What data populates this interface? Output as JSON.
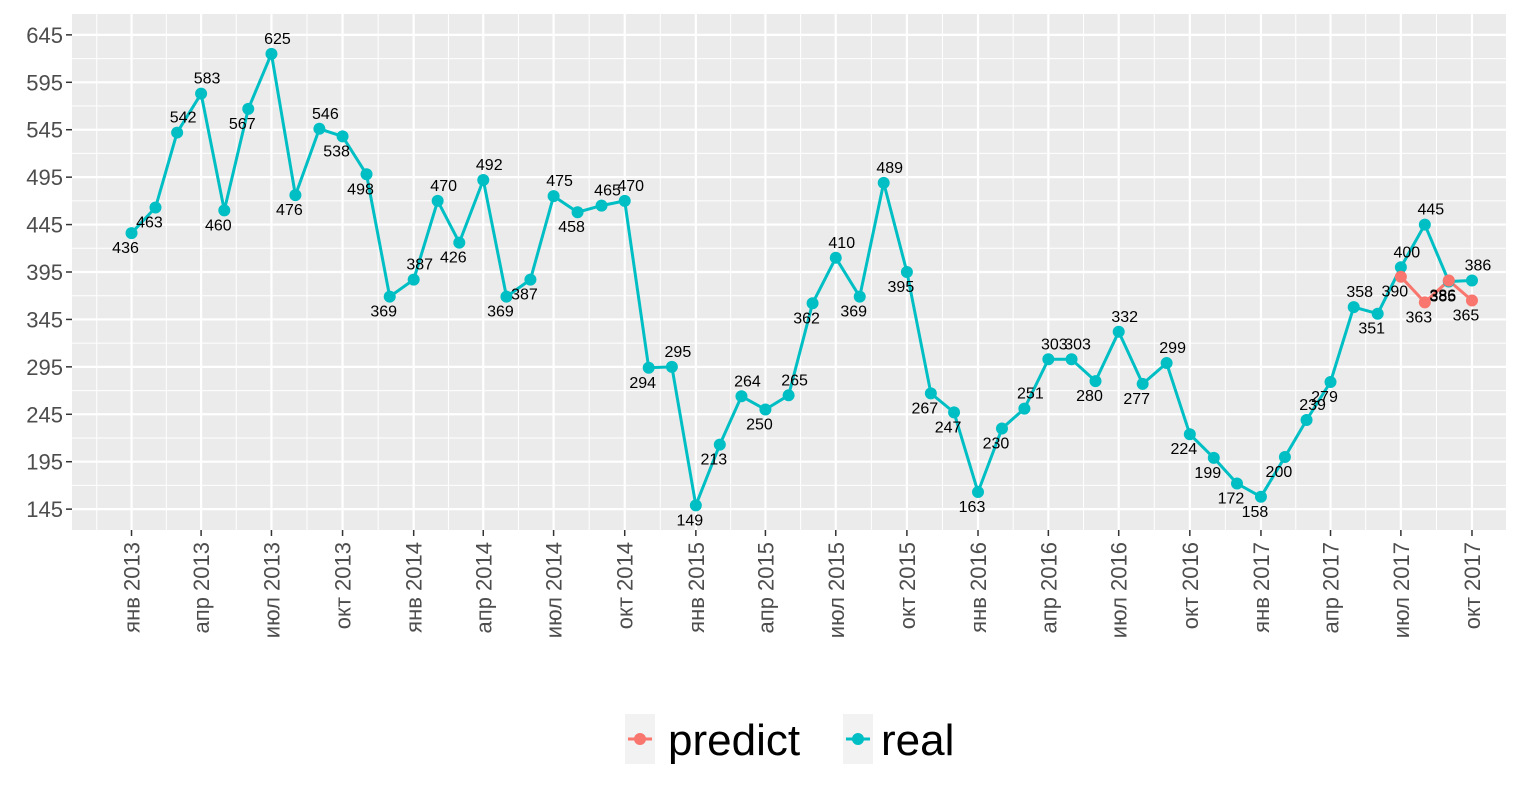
{
  "chart_data": {
    "type": "line",
    "title": "",
    "xlabel": "",
    "ylabel": "",
    "ylim": [
      123,
      667
    ],
    "yticks": [
      145,
      195,
      245,
      295,
      345,
      395,
      445,
      495,
      545,
      595,
      645
    ],
    "xlim": [
      "2012-10-16",
      "2017-11-14"
    ],
    "xticks": [
      {
        "date": "2013-01-01",
        "label": "янв 2013"
      },
      {
        "date": "2013-04-01",
        "label": "апр 2013"
      },
      {
        "date": "2013-07-01",
        "label": "июл 2013"
      },
      {
        "date": "2013-10-01",
        "label": "окт 2013"
      },
      {
        "date": "2014-01-01",
        "label": "янв 2014"
      },
      {
        "date": "2014-04-01",
        "label": "апр 2014"
      },
      {
        "date": "2014-07-01",
        "label": "июл 2014"
      },
      {
        "date": "2014-10-01",
        "label": "окт 2014"
      },
      {
        "date": "2015-01-01",
        "label": "янв 2015"
      },
      {
        "date": "2015-04-01",
        "label": "апр 2015"
      },
      {
        "date": "2015-07-01",
        "label": "июл 2015"
      },
      {
        "date": "2015-10-01",
        "label": "окт 2015"
      },
      {
        "date": "2016-01-01",
        "label": "янв 2016"
      },
      {
        "date": "2016-04-01",
        "label": "апр 2016"
      },
      {
        "date": "2016-07-01",
        "label": "июл 2016"
      },
      {
        "date": "2016-10-01",
        "label": "окт 2016"
      },
      {
        "date": "2017-01-01",
        "label": "янв 2017"
      },
      {
        "date": "2017-04-01",
        "label": "апр 2017"
      },
      {
        "date": "2017-07-01",
        "label": "июл 2017"
      },
      {
        "date": "2017-10-01",
        "label": "окт 2017"
      }
    ],
    "grid": true,
    "legend_position": "bottom",
    "series": [
      {
        "name": "real",
        "color": "#00BFC4",
        "points": [
          {
            "x": "2013-01-01",
            "y": 436
          },
          {
            "x": "2013-02-01",
            "y": 463
          },
          {
            "x": "2013-03-01",
            "y": 542
          },
          {
            "x": "2013-04-01",
            "y": 583
          },
          {
            "x": "2013-05-01",
            "y": 460
          },
          {
            "x": "2013-06-01",
            "y": 567
          },
          {
            "x": "2013-07-01",
            "y": 625
          },
          {
            "x": "2013-08-01",
            "y": 476
          },
          {
            "x": "2013-09-01",
            "y": 546
          },
          {
            "x": "2013-10-01",
            "y": 538
          },
          {
            "x": "2013-11-01",
            "y": 498
          },
          {
            "x": "2013-12-01",
            "y": 369
          },
          {
            "x": "2014-01-01",
            "y": 387
          },
          {
            "x": "2014-02-01",
            "y": 470
          },
          {
            "x": "2014-03-01",
            "y": 426
          },
          {
            "x": "2014-04-01",
            "y": 492
          },
          {
            "x": "2014-05-01",
            "y": 369
          },
          {
            "x": "2014-06-01",
            "y": 387
          },
          {
            "x": "2014-07-01",
            "y": 475
          },
          {
            "x": "2014-08-01",
            "y": 458
          },
          {
            "x": "2014-09-01",
            "y": 465
          },
          {
            "x": "2014-10-01",
            "y": 470
          },
          {
            "x": "2014-11-01",
            "y": 294
          },
          {
            "x": "2014-12-01",
            "y": 295
          },
          {
            "x": "2015-01-01",
            "y": 149
          },
          {
            "x": "2015-02-01",
            "y": 213
          },
          {
            "x": "2015-03-01",
            "y": 264
          },
          {
            "x": "2015-04-01",
            "y": 250
          },
          {
            "x": "2015-05-01",
            "y": 265
          },
          {
            "x": "2015-06-01",
            "y": 362
          },
          {
            "x": "2015-07-01",
            "y": 410
          },
          {
            "x": "2015-08-01",
            "y": 369
          },
          {
            "x": "2015-09-01",
            "y": 489
          },
          {
            "x": "2015-10-01",
            "y": 395
          },
          {
            "x": "2015-11-01",
            "y": 267
          },
          {
            "x": "2015-12-01",
            "y": 247
          },
          {
            "x": "2016-01-01",
            "y": 163
          },
          {
            "x": "2016-02-01",
            "y": 230
          },
          {
            "x": "2016-03-01",
            "y": 251
          },
          {
            "x": "2016-04-01",
            "y": 303
          },
          {
            "x": "2016-05-01",
            "y": 303
          },
          {
            "x": "2016-06-01",
            "y": 280
          },
          {
            "x": "2016-07-01",
            "y": 332
          },
          {
            "x": "2016-08-01",
            "y": 277
          },
          {
            "x": "2016-09-01",
            "y": 299
          },
          {
            "x": "2016-10-01",
            "y": 224
          },
          {
            "x": "2016-11-01",
            "y": 199
          },
          {
            "x": "2016-12-01",
            "y": 172
          },
          {
            "x": "2017-01-01",
            "y": 158
          },
          {
            "x": "2017-02-01",
            "y": 200
          },
          {
            "x": "2017-03-01",
            "y": 239
          },
          {
            "x": "2017-04-01",
            "y": 279
          },
          {
            "x": "2017-05-01",
            "y": 358
          },
          {
            "x": "2017-06-01",
            "y": 351
          },
          {
            "x": "2017-07-01",
            "y": 400
          },
          {
            "x": "2017-08-01",
            "y": 445
          },
          {
            "x": "2017-09-01",
            "y": 385
          },
          {
            "x": "2017-10-01",
            "y": 386
          }
        ]
      },
      {
        "name": "predict",
        "color": "#F8766D",
        "points": [
          {
            "x": "2017-07-01",
            "y": 390
          },
          {
            "x": "2017-08-01",
            "y": 363
          },
          {
            "x": "2017-09-01",
            "y": 386
          },
          {
            "x": "2017-10-01",
            "y": 365
          }
        ]
      }
    ]
  },
  "legend": {
    "items": [
      {
        "label": "predict",
        "color": "#F8766D"
      },
      {
        "label": "real",
        "color": "#00BFC4"
      }
    ]
  }
}
